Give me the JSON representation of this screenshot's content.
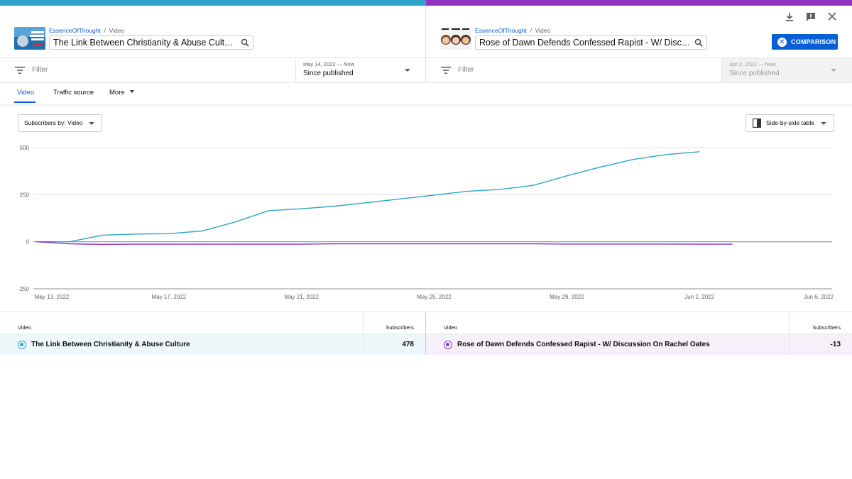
{
  "colors": {
    "left_accent": "#2ea3c9",
    "right_accent": "#8e35c2",
    "primary": "#065fd4"
  },
  "left": {
    "channel": "EssenceOfThought",
    "crumb_sep": "/",
    "crumb_type": "Video",
    "title": "The Link Between Christianity & Abuse Culture",
    "filter_placeholder": "Filter",
    "date_range": "May 14, 2022 — Now",
    "date_select": "Since published"
  },
  "right": {
    "channel": "EssenceOfThought",
    "crumb_sep": "/",
    "crumb_type": "Video",
    "title": "Rose of Dawn Defends Confessed Rapist - W/ Discussion On Rachel Oates",
    "filter_placeholder": "Filter",
    "date_range": "Apr 2, 2022 — Now",
    "date_select": "Since published"
  },
  "toolbar": {
    "download_icon": "download-icon",
    "feedback_icon": "feedback-icon",
    "close_icon": "close-icon",
    "comparison_label": "COMPARISON"
  },
  "tabs": [
    {
      "label": "Video",
      "active": true
    },
    {
      "label": "Traffic source",
      "active": false
    },
    {
      "label": "More",
      "active": false
    }
  ],
  "controls": {
    "metric_dropdown": "Subscribers by: Video",
    "view_dropdown": "Side-by-side table"
  },
  "chart_data": {
    "type": "line",
    "ylim": [
      -250,
      500
    ],
    "yticks": [
      500,
      250,
      0,
      -250
    ],
    "x_ticks": [
      "May 13, 2022",
      "May 17, 2022",
      "May 21, 2022",
      "May 25, 2022",
      "May 29, 2022",
      "Jun 2, 2022",
      "Jun 6, 2022"
    ],
    "x_start": "2022-05-13",
    "x_end": "2022-06-06",
    "grid": true,
    "series": [
      {
        "color": "#2ea3c9",
        "x": [
          "2022-05-13",
          "2022-05-14",
          "2022-05-15",
          "2022-05-16",
          "2022-05-17",
          "2022-05-18",
          "2022-05-19",
          "2022-05-20",
          "2022-05-21",
          "2022-05-22",
          "2022-05-23",
          "2022-05-24",
          "2022-05-25",
          "2022-05-26",
          "2022-05-27",
          "2022-05-28",
          "2022-05-29",
          "2022-05-30",
          "2022-05-31",
          "2022-06-01",
          "2022-06-02"
        ],
        "values": [
          0,
          0,
          35,
          41,
          43,
          57,
          105,
          165,
          175,
          189,
          208,
          228,
          248,
          268,
          278,
          300,
          350,
          396,
          437,
          463,
          478
        ]
      },
      {
        "color": "#8e35c2",
        "x": [
          "2022-05-13",
          "2022-05-14",
          "2022-05-15",
          "2022-05-16",
          "2022-05-17",
          "2022-05-18",
          "2022-05-19",
          "2022-05-20",
          "2022-05-21",
          "2022-05-22",
          "2022-05-23",
          "2022-05-24",
          "2022-05-25",
          "2022-05-26",
          "2022-05-27",
          "2022-05-28",
          "2022-05-29",
          "2022-05-30",
          "2022-05-31",
          "2022-06-01",
          "2022-06-02",
          "2022-06-03"
        ],
        "values": [
          0,
          -11,
          -14,
          -13,
          -13,
          -13,
          -13,
          -13,
          -13,
          -11,
          -11,
          -11,
          -11,
          -11,
          -11,
          -11,
          -12,
          -12,
          -12,
          -12,
          -13,
          -13
        ]
      }
    ]
  },
  "table": {
    "left": {
      "col_video": "Video",
      "col_subs": "Subscribers",
      "row_title": "The Link Between Christianity & Abuse Culture",
      "row_value": "478"
    },
    "right": {
      "col_video": "Video",
      "col_subs": "Subscribers",
      "row_title": "Rose of Dawn Defends Confessed Rapist - W/ Discussion On Rachel Oates",
      "row_value": "-13"
    }
  }
}
